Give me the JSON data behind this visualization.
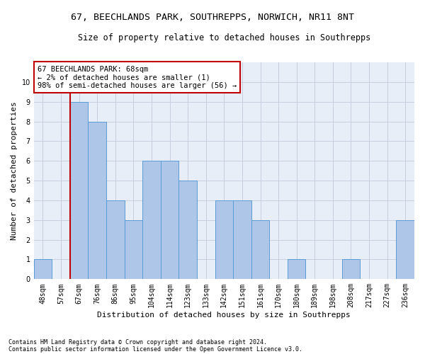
{
  "title": "67, BEECHLANDS PARK, SOUTHREPPS, NORWICH, NR11 8NT",
  "subtitle": "Size of property relative to detached houses in Southrepps",
  "xlabel": "Distribution of detached houses by size in Southrepps",
  "ylabel": "Number of detached properties",
  "categories": [
    "48sqm",
    "57sqm",
    "67sqm",
    "76sqm",
    "86sqm",
    "95sqm",
    "104sqm",
    "114sqm",
    "123sqm",
    "133sqm",
    "142sqm",
    "151sqm",
    "161sqm",
    "170sqm",
    "180sqm",
    "189sqm",
    "198sqm",
    "208sqm",
    "217sqm",
    "227sqm",
    "236sqm"
  ],
  "values": [
    1,
    0,
    9,
    8,
    4,
    3,
    6,
    6,
    5,
    0,
    4,
    4,
    3,
    0,
    1,
    0,
    0,
    1,
    0,
    0,
    3
  ],
  "highlight_index": 2,
  "highlight_color": "#c00000",
  "bar_color": "#aec6e8",
  "bar_edge_color": "#5b9bd5",
  "ylim": [
    0,
    11
  ],
  "yticks": [
    0,
    1,
    2,
    3,
    4,
    5,
    6,
    7,
    8,
    9,
    10,
    11
  ],
  "annotation_title": "67 BEECHLANDS PARK: 68sqm",
  "annotation_line1": "← 2% of detached houses are smaller (1)",
  "annotation_line2": "98% of semi-detached houses are larger (56) →",
  "footnote1": "Contains HM Land Registry data © Crown copyright and database right 2024.",
  "footnote2": "Contains public sector information licensed under the Open Government Licence v3.0.",
  "bg_color": "#e8eef8",
  "grid_color": "#c8d0e0",
  "title_fontsize": 9.5,
  "subtitle_fontsize": 8.5,
  "tick_fontsize": 7,
  "label_fontsize": 8,
  "annotation_fontsize": 7.5,
  "footnote_fontsize": 6
}
